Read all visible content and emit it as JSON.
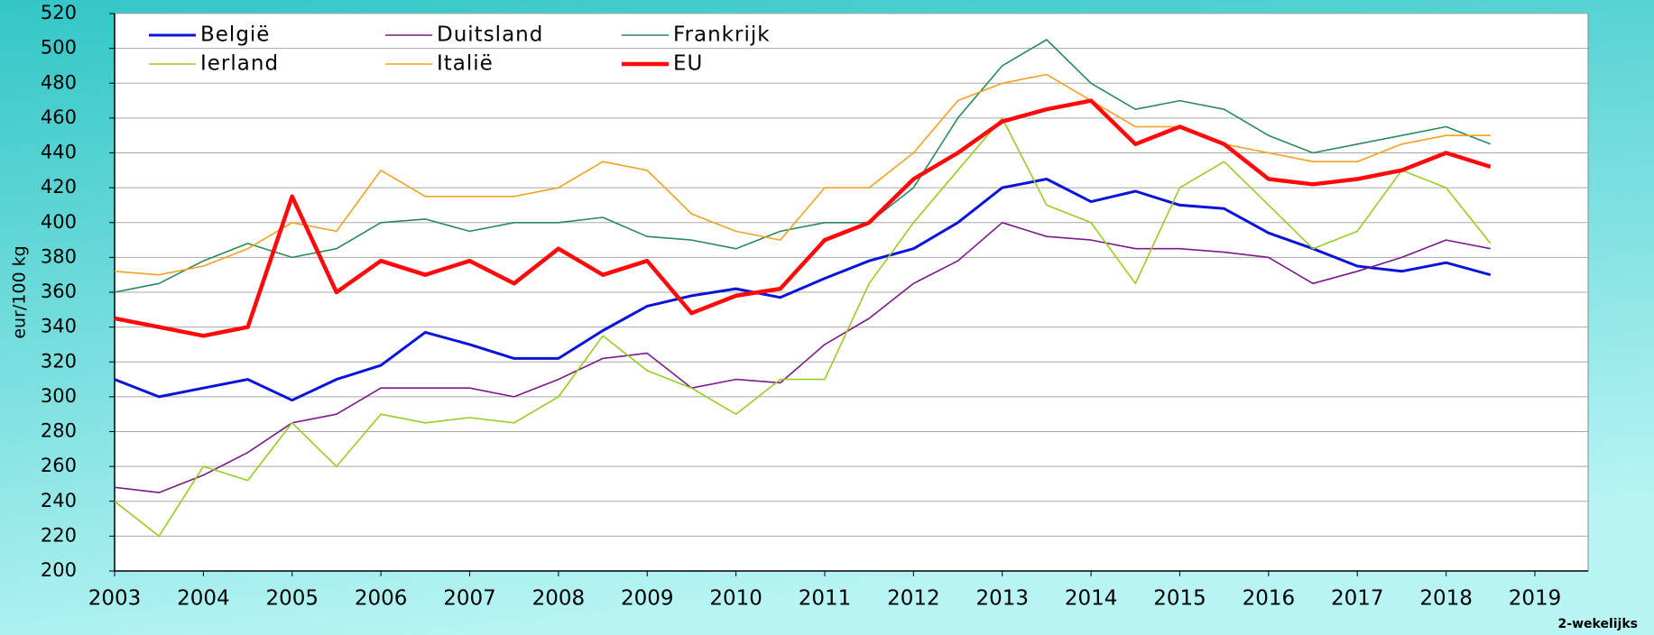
{
  "chart_data": {
    "type": "line",
    "y_label": "eur/100 kg",
    "note": "2-wekelijks",
    "x": [
      2003,
      2003.5,
      2004,
      2004.5,
      2005,
      2005.5,
      2006,
      2006.5,
      2007,
      2007.5,
      2008,
      2008.5,
      2009,
      2009.5,
      2010,
      2010.5,
      2011,
      2011.5,
      2012,
      2012.5,
      2013,
      2013.5,
      2014,
      2014.5,
      2015,
      2015.5,
      2016,
      2016.5,
      2017,
      2017.5,
      2018,
      2018.5
    ],
    "series": [
      {
        "name": "België",
        "color": "#0a14d8",
        "width": 3,
        "values": [
          310,
          300,
          305,
          310,
          298,
          310,
          318,
          337,
          330,
          322,
          322,
          338,
          352,
          358,
          362,
          357,
          368,
          378,
          385,
          400,
          420,
          425,
          412,
          418,
          410,
          408,
          394,
          385,
          375,
          372,
          377,
          370
        ]
      },
      {
        "name": "Duitsland",
        "color": "#7a1a8a",
        "width": 1.6,
        "values": [
          248,
          245,
          255,
          268,
          285,
          290,
          305,
          305,
          305,
          300,
          310,
          322,
          325,
          305,
          310,
          308,
          330,
          345,
          365,
          378,
          400,
          392,
          390,
          385,
          385,
          383,
          380,
          365,
          372,
          380,
          390,
          385
        ]
      },
      {
        "name": "Frankrijk",
        "color": "#2a8a5a",
        "width": 1.6,
        "values": [
          360,
          365,
          378,
          388,
          380,
          385,
          400,
          402,
          395,
          400,
          400,
          403,
          392,
          390,
          385,
          395,
          400,
          400,
          420,
          460,
          490,
          505,
          480,
          465,
          470,
          465,
          450,
          440,
          445,
          450,
          455,
          445
        ]
      },
      {
        "name": "Ierland",
        "color": "#99cc22",
        "width": 1.6,
        "values": [
          240,
          220,
          260,
          252,
          285,
          260,
          290,
          285,
          288,
          285,
          300,
          335,
          315,
          305,
          290,
          310,
          310,
          365,
          400,
          430,
          460,
          410,
          400,
          365,
          420,
          435,
          410,
          385,
          395,
          430,
          420,
          388
        ]
      },
      {
        "name": "Italië",
        "color": "#f5a020",
        "width": 1.6,
        "values": [
          372,
          370,
          375,
          385,
          400,
          395,
          430,
          415,
          415,
          415,
          420,
          435,
          430,
          405,
          395,
          390,
          420,
          420,
          440,
          470,
          480,
          485,
          470,
          455,
          455,
          445,
          440,
          435,
          435,
          445,
          450,
          450
        ]
      },
      {
        "name": "EU",
        "color": "#ff0a0a",
        "width": 4.5,
        "values": [
          345,
          340,
          335,
          340,
          415,
          360,
          378,
          370,
          378,
          365,
          385,
          370,
          378,
          348,
          358,
          362,
          390,
          400,
          425,
          440,
          458,
          465,
          470,
          445,
          455,
          445,
          425,
          422,
          425,
          430,
          440,
          432
        ]
      }
    ],
    "xlim": [
      2003,
      2019.6
    ],
    "xticks": [
      2003,
      2004,
      2005,
      2006,
      2007,
      2008,
      2009,
      2010,
      2011,
      2012,
      2013,
      2014,
      2015,
      2016,
      2017,
      2018,
      2019
    ],
    "ylim": [
      200,
      520
    ],
    "yticks": [
      200,
      220,
      240,
      260,
      280,
      300,
      320,
      340,
      360,
      380,
      400,
      420,
      440,
      460,
      480,
      500,
      520
    ],
    "grid": true
  }
}
